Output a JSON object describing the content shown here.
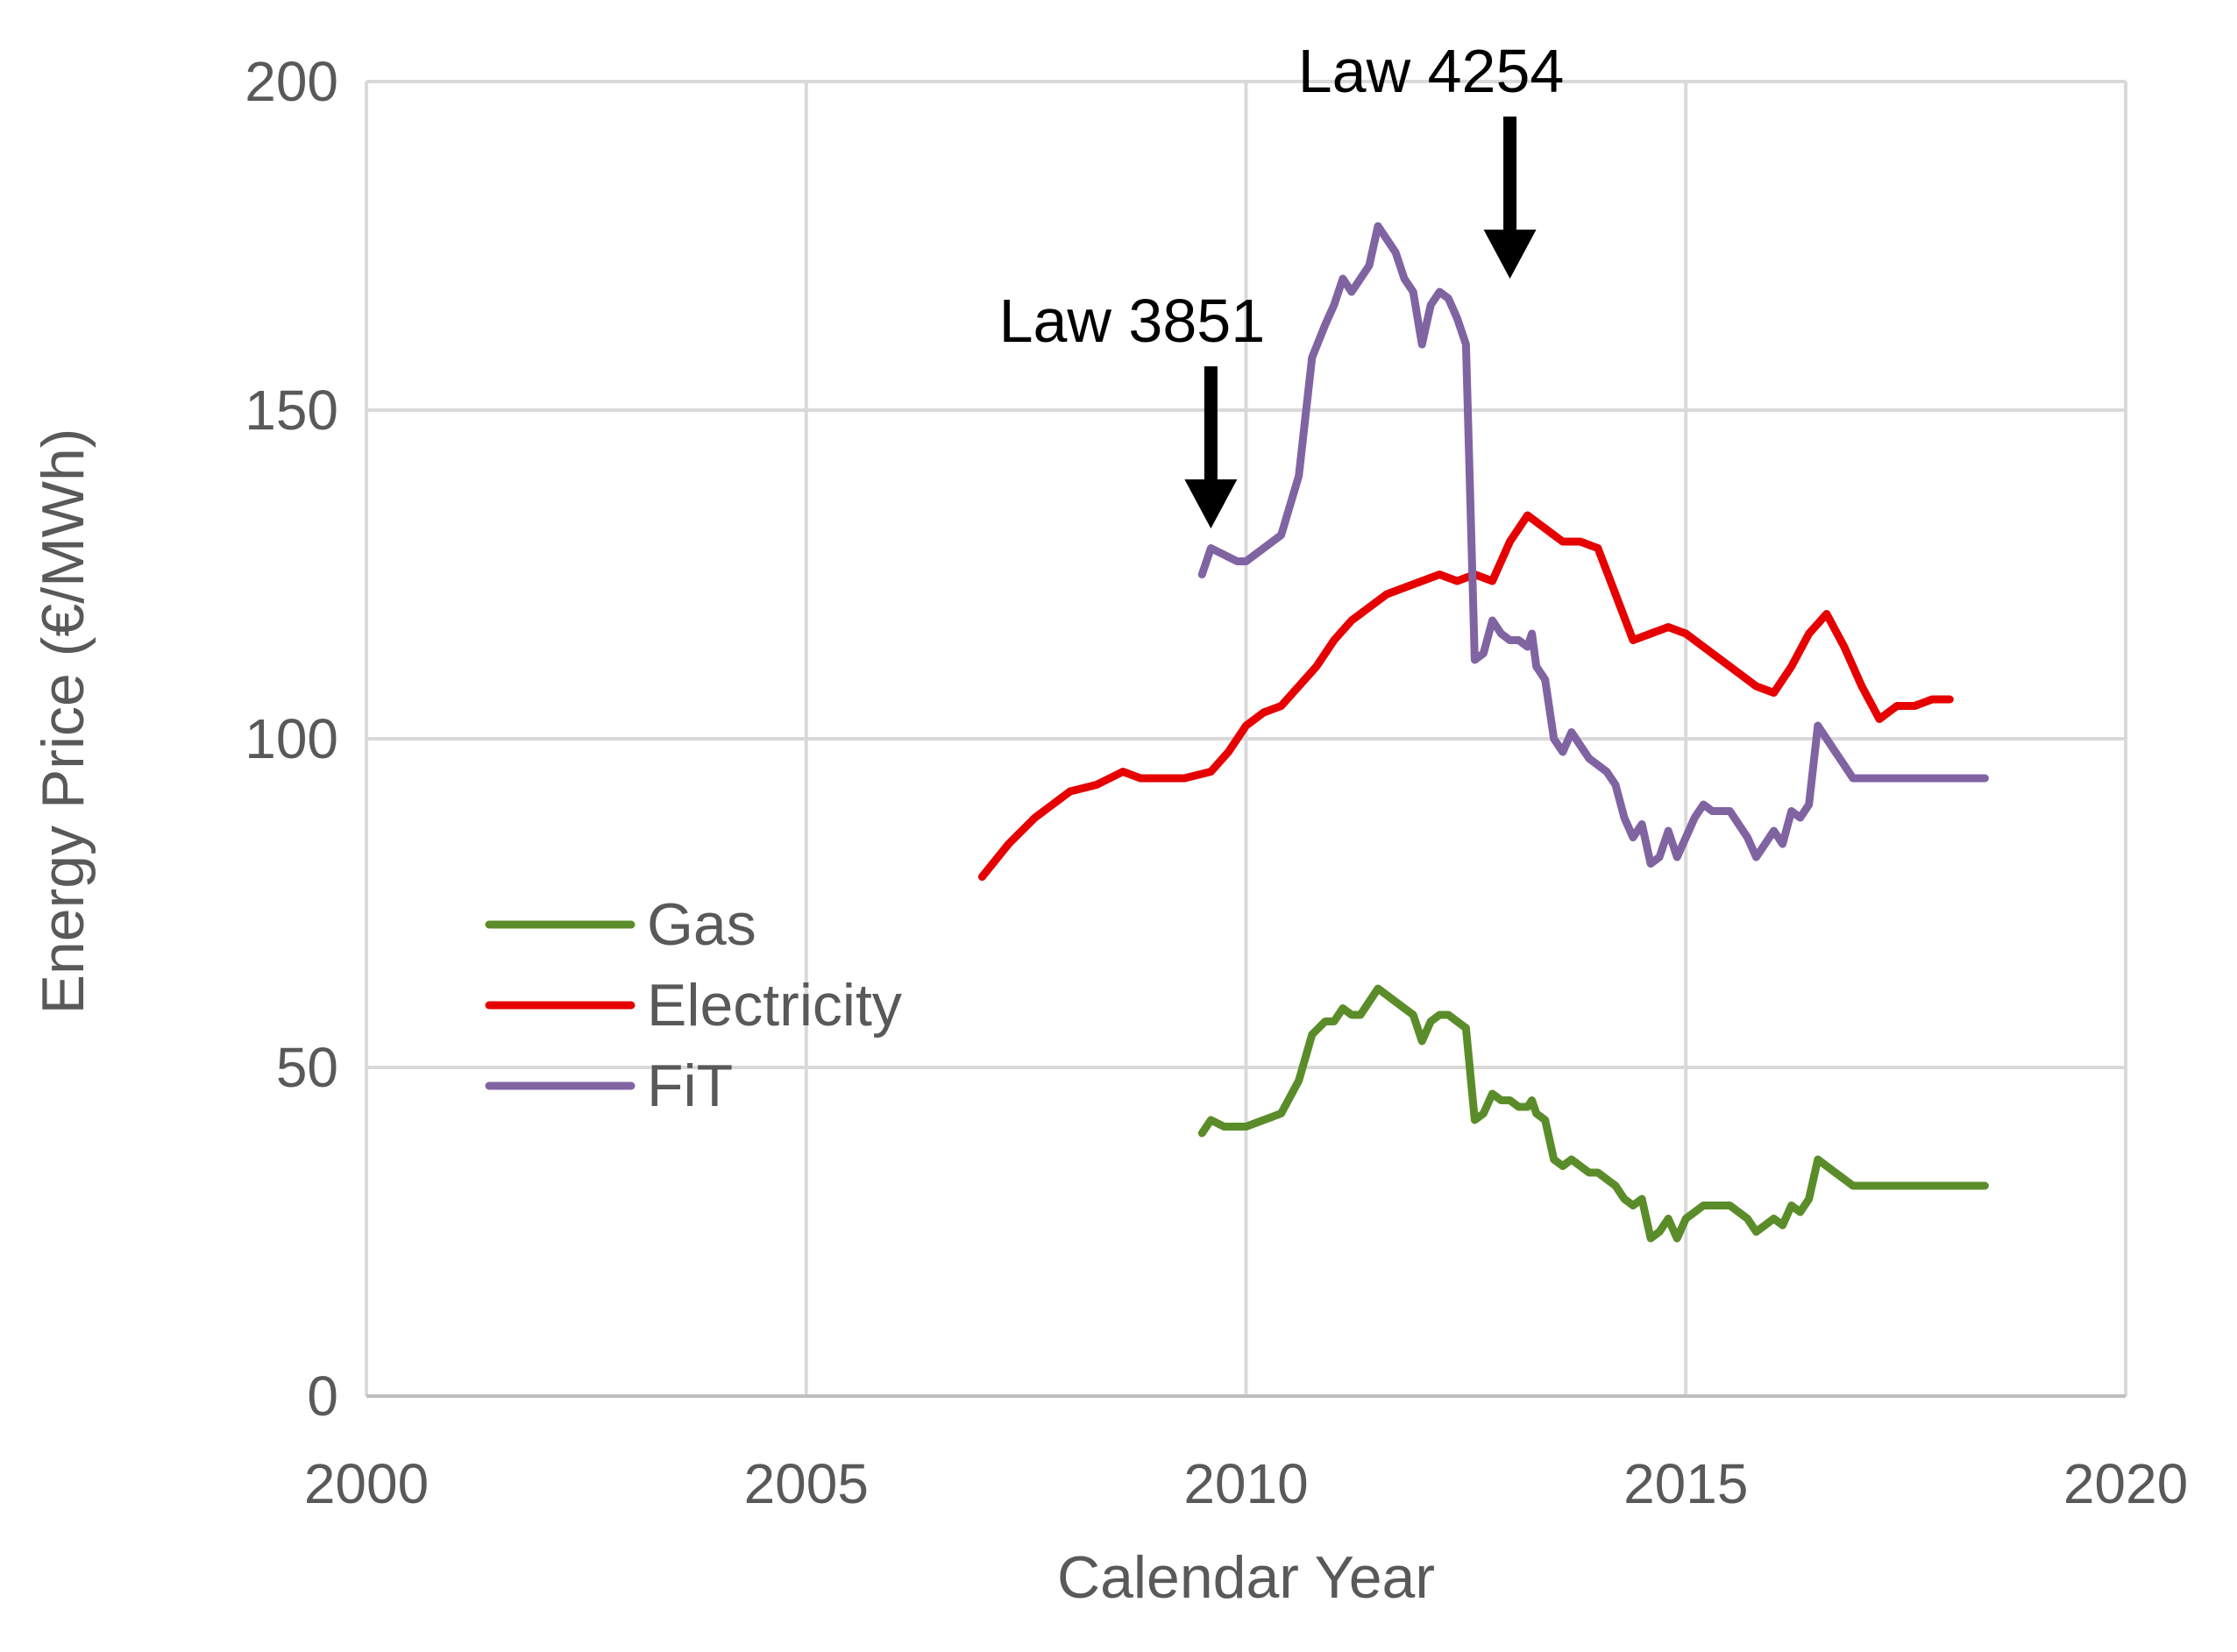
{
  "chart_data": {
    "type": "line",
    "title": "",
    "xlabel": "Calendar Year",
    "ylabel": "Energy Price (€/MWh)",
    "xlim": [
      2000,
      2020
    ],
    "ylim": [
      0,
      200
    ],
    "xticks": [
      2000,
      2005,
      2010,
      2015,
      2020
    ],
    "yticks": [
      0,
      50,
      100,
      150,
      200
    ],
    "grid": true,
    "legend_position": "middle-left",
    "series": [
      {
        "name": "Gas",
        "color": "#5b8c2a",
        "x": [
          2009.5,
          2009.6,
          2009.75,
          2009.9,
          2010.0,
          2010.2,
          2010.4,
          2010.6,
          2010.75,
          2010.9,
          2011.0,
          2011.1,
          2011.2,
          2011.3,
          2011.4,
          2011.5,
          2011.6,
          2011.7,
          2011.8,
          2011.9,
          2012.0,
          2012.1,
          2012.2,
          2012.3,
          2012.4,
          2012.5,
          2012.6,
          2012.7,
          2012.8,
          2012.9,
          2013.0,
          2013.1,
          2013.2,
          2013.25,
          2013.3,
          2013.4,
          2013.5,
          2013.6,
          2013.7,
          2013.8,
          2013.9,
          2014.0,
          2014.1,
          2014.2,
          2014.3,
          2014.4,
          2014.5,
          2014.6,
          2014.7,
          2014.8,
          2014.9,
          2015.0,
          2015.1,
          2015.2,
          2015.3,
          2015.4,
          2015.5,
          2015.6,
          2015.7,
          2015.8,
          2015.9,
          2016.0,
          2016.1,
          2016.2,
          2016.3,
          2016.4,
          2016.5,
          2016.6,
          2016.7,
          2016.8,
          2016.9,
          2017.0,
          2017.1,
          2017.2,
          2017.3,
          2017.4,
          2017.5,
          2017.6,
          2017.7,
          2017.8,
          2017.9,
          2018.0,
          2018.2,
          2018.4
        ],
        "values": [
          40,
          42,
          41,
          41,
          41,
          42,
          43,
          48,
          55,
          57,
          57,
          59,
          58,
          58,
          60,
          62,
          61,
          60,
          59,
          58,
          54,
          57,
          58,
          58,
          57,
          56,
          42,
          43,
          46,
          45,
          45,
          44,
          44,
          45,
          43,
          42,
          36,
          35,
          36,
          35,
          34,
          34,
          33,
          32,
          30,
          29,
          30,
          24,
          25,
          27,
          24,
          27,
          28,
          29,
          29,
          29,
          29,
          28,
          27,
          25,
          26,
          27,
          26,
          29,
          28,
          30,
          36,
          35,
          34,
          33,
          32,
          32,
          32,
          32,
          32,
          32,
          32,
          32,
          32,
          32,
          32,
          32,
          32,
          32
        ]
      },
      {
        "name": "Electricity",
        "color": "#e60000",
        "x": [
          2007.0,
          2007.3,
          2007.6,
          2008.0,
          2008.3,
          2008.6,
          2008.8,
          2009.0,
          2009.3,
          2009.6,
          2009.8,
          2010.0,
          2010.2,
          2010.4,
          2010.6,
          2010.8,
          2011.0,
          2011.2,
          2011.4,
          2011.6,
          2011.8,
          2012.0,
          2012.2,
          2012.4,
          2012.6,
          2012.8,
          2013.0,
          2013.2,
          2013.4,
          2013.5,
          2013.6,
          2013.8,
          2014.0,
          2014.2,
          2014.4,
          2014.6,
          2014.8,
          2015.0,
          2015.2,
          2015.4,
          2015.6,
          2015.8,
          2016.0,
          2016.2,
          2016.4,
          2016.6,
          2016.8,
          2017.0,
          2017.2,
          2017.4,
          2017.6,
          2017.8,
          2018.0
        ],
        "values": [
          79,
          84,
          88,
          92,
          93,
          95,
          94,
          94,
          94,
          95,
          98,
          102,
          104,
          105,
          108,
          111,
          115,
          118,
          120,
          122,
          123,
          124,
          125,
          124,
          125,
          124,
          130,
          134,
          132,
          131,
          130,
          130,
          129,
          122,
          115,
          116,
          117,
          116,
          114,
          112,
          110,
          108,
          107,
          111,
          116,
          119,
          114,
          108,
          103,
          105,
          105,
          106,
          106
        ]
      },
      {
        "name": "FiT",
        "color": "#8064a2",
        "x": [
          2009.5,
          2009.6,
          2009.75,
          2009.9,
          2010.0,
          2010.2,
          2010.4,
          2010.6,
          2010.75,
          2010.9,
          2011.0,
          2011.1,
          2011.2,
          2011.3,
          2011.4,
          2011.5,
          2011.6,
          2011.7,
          2011.8,
          2011.9,
          2012.0,
          2012.1,
          2012.2,
          2012.3,
          2012.4,
          2012.5,
          2012.6,
          2012.7,
          2012.8,
          2012.9,
          2013.0,
          2013.1,
          2013.2,
          2013.25,
          2013.3,
          2013.4,
          2013.5,
          2013.6,
          2013.7,
          2013.8,
          2013.9,
          2014.0,
          2014.1,
          2014.2,
          2014.3,
          2014.4,
          2014.5,
          2014.6,
          2014.7,
          2014.8,
          2014.9,
          2015.0,
          2015.1,
          2015.2,
          2015.3,
          2015.4,
          2015.5,
          2015.6,
          2015.7,
          2015.8,
          2015.9,
          2016.0,
          2016.1,
          2016.2,
          2016.3,
          2016.4,
          2016.5,
          2016.6,
          2016.7,
          2016.8,
          2016.9,
          2017.0,
          2017.1,
          2017.2,
          2017.3,
          2017.4,
          2017.5,
          2017.6,
          2017.7,
          2017.8,
          2017.9,
          2018.0,
          2018.2,
          2018.4
        ],
        "values": [
          125,
          129,
          128,
          127,
          127,
          129,
          131,
          140,
          158,
          163,
          166,
          170,
          168,
          170,
          172,
          178,
          176,
          174,
          170,
          168,
          160,
          166,
          168,
          167,
          164,
          160,
          112,
          113,
          118,
          116,
          115,
          115,
          114,
          116,
          111,
          109,
          100,
          98,
          101,
          99,
          97,
          96,
          95,
          93,
          88,
          85,
          87,
          81,
          82,
          86,
          82,
          85,
          88,
          90,
          89,
          89,
          89,
          87,
          85,
          82,
          84,
          86,
          84,
          89,
          88,
          90,
          102,
          100,
          98,
          96,
          94,
          94,
          94,
          94,
          94,
          94,
          94,
          94,
          94,
          94,
          94,
          94,
          94,
          94
        ]
      }
    ],
    "annotations": [
      {
        "text": "Law 3851",
        "x": 2009.6,
        "y": 132
      },
      {
        "text": "Law 4254",
        "x": 2013.0,
        "y": 170
      }
    ]
  }
}
